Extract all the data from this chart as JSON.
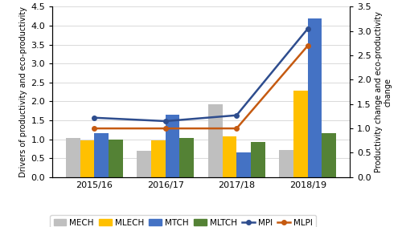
{
  "years": [
    "2015/16",
    "2016/17",
    "2017/18",
    "2018/19"
  ],
  "MECH": [
    1.03,
    0.69,
    1.92,
    0.71
  ],
  "MLECH": [
    0.97,
    0.97,
    1.08,
    2.28
  ],
  "MTCH": [
    1.17,
    1.65,
    0.66,
    4.2
  ],
  "MLTCH": [
    1.0,
    1.03,
    0.92,
    1.17
  ],
  "MPI": [
    1.22,
    1.15,
    1.27,
    3.05
  ],
  "MLPI": [
    1.0,
    1.0,
    1.0,
    2.7
  ],
  "bar_colors": {
    "MECH": "#bfbfbf",
    "MLECH": "#ffc000",
    "MTCH": "#4472c4",
    "MLTCH": "#548235"
  },
  "line_colors": {
    "MPI": "#2e4d8e",
    "MLPI": "#c55a11"
  },
  "ylabel_left": "Drivers of productivity and eco-productivity",
  "ylabel_right": "Productivity change and eco-productivity\nchange",
  "ylim_left": [
    0.0,
    4.5
  ],
  "ylim_right": [
    0.0,
    3.5
  ],
  "yticks_left": [
    0.0,
    0.5,
    1.0,
    1.5,
    2.0,
    2.5,
    3.0,
    3.5,
    4.0,
    4.5
  ],
  "yticks_right": [
    0.0,
    0.5,
    1.0,
    1.5,
    2.0,
    2.5,
    3.0,
    3.5
  ],
  "background_color": "#ffffff",
  "bar_width": 0.2,
  "legend_labels": [
    "MECH",
    "MLECH",
    "MTCH",
    "MLTCH",
    "MPI",
    "MLPI"
  ],
  "grid_color": "#d9d9d9",
  "tick_fontsize": 8,
  "ylabel_fontsize": 7,
  "legend_fontsize": 7.5
}
